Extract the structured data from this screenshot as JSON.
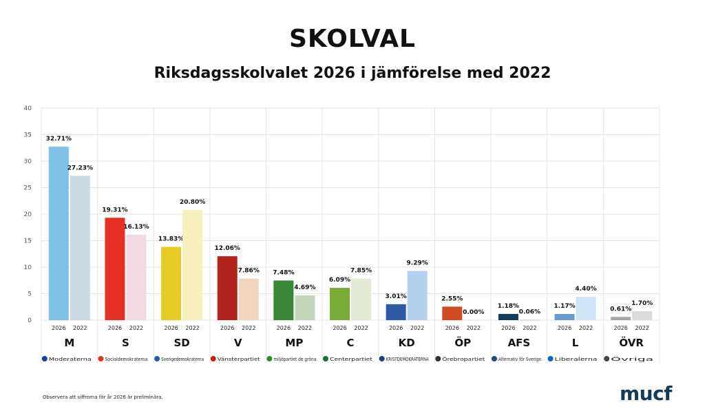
{
  "title": "SKOLVAL",
  "subtitle": "Riksdagsskolvalet 2026 i jämförelse med 2022",
  "footnote": "Observera att siffrorna för år 2026 är preliminära.",
  "brand": "mucf",
  "chart_data": {
    "type": "bar",
    "ylim": [
      0,
      40
    ],
    "yticks": [
      0,
      5,
      10,
      15,
      20,
      25,
      30,
      35,
      40
    ],
    "grid": true,
    "series_years": [
      "2026",
      "2022"
    ],
    "parties": [
      {
        "abbr": "M",
        "logo_text": "Moderaterna",
        "v2026": 32.71,
        "v2022": 27.23,
        "l2026": "32.71%",
        "l2022": "27.23%",
        "c2026": "#7fc1e6",
        "c2022": "#cbd9e0",
        "logo_color": "#1d3f8f"
      },
      {
        "abbr": "S",
        "logo_text": "Socialdemokraterna",
        "v2026": 19.31,
        "v2022": 16.13,
        "l2026": "19.31%",
        "l2022": "16.13%",
        "c2026": "#e63027",
        "c2022": "#f1dbe1",
        "logo_color": "#e63027"
      },
      {
        "abbr": "SD",
        "logo_text": "Sverigedemokraterna",
        "v2026": 13.83,
        "v2022": 20.8,
        "l2026": "13.83%",
        "l2022": "20.80%",
        "c2026": "#e8cb27",
        "c2022": "#f8f0bd",
        "logo_color": "#2c5c9e"
      },
      {
        "abbr": "V",
        "logo_text": "Vänsterpartiet",
        "v2026": 12.06,
        "v2022": 7.86,
        "l2026": "12.06%",
        "l2022": "7.86%",
        "c2026": "#b4241e",
        "c2022": "#f0d6bf",
        "logo_color": "#c4201b"
      },
      {
        "abbr": "MP",
        "logo_text": "miljöpartiet de gröna",
        "v2026": 7.48,
        "v2022": 4.69,
        "l2026": "7.48%",
        "l2022": "4.69%",
        "c2026": "#3a8536",
        "c2022": "#c4d6b9",
        "logo_color": "#3a8536"
      },
      {
        "abbr": "C",
        "logo_text": "Centerpartiet",
        "v2026": 6.09,
        "v2022": 7.85,
        "l2026": "6.09%",
        "l2022": "7.85%",
        "c2026": "#7aaa37",
        "c2022": "#e3ebd4",
        "logo_color": "#1e6b3a"
      },
      {
        "abbr": "KD",
        "logo_text": "KRISTDEMOKRATERNA",
        "v2026": 3.01,
        "v2022": 9.29,
        "l2026": "3.01%",
        "l2022": "9.29%",
        "c2026": "#2c5aa5",
        "c2022": "#b3d0ee",
        "logo_color": "#1f3f7d"
      },
      {
        "abbr": "ÖP",
        "logo_text": "Örebropartiet",
        "v2026": 2.55,
        "v2022": 0.0,
        "l2026": "2.55%",
        "l2022": "0.00%",
        "c2026": "#d04a22",
        "c2022": "#e9e9e9",
        "logo_color": "#333333"
      },
      {
        "abbr": "AFS",
        "logo_text": "Alternativ för Sverige",
        "v2026": 1.18,
        "v2022": 0.06,
        "l2026": "1.18%",
        "l2022": "0.06%",
        "c2026": "#153a5a",
        "c2022": "#9fb6d0",
        "logo_color": "#1f4a7c"
      },
      {
        "abbr": "L",
        "logo_text": "Liberalerna",
        "v2026": 1.17,
        "v2022": 4.4,
        "l2026": "1.17%",
        "l2022": "4.40%",
        "c2026": "#6699cc",
        "c2022": "#cfe3f7",
        "logo_color": "#1464b4"
      },
      {
        "abbr": "ÖVR",
        "logo_text": "Övriga",
        "v2026": 0.61,
        "v2022": 1.7,
        "l2026": "0.61%",
        "l2022": "1.70%",
        "c2026": "#a6a6a6",
        "c2022": "#dcdcdc",
        "logo_color": "#444444"
      }
    ]
  }
}
